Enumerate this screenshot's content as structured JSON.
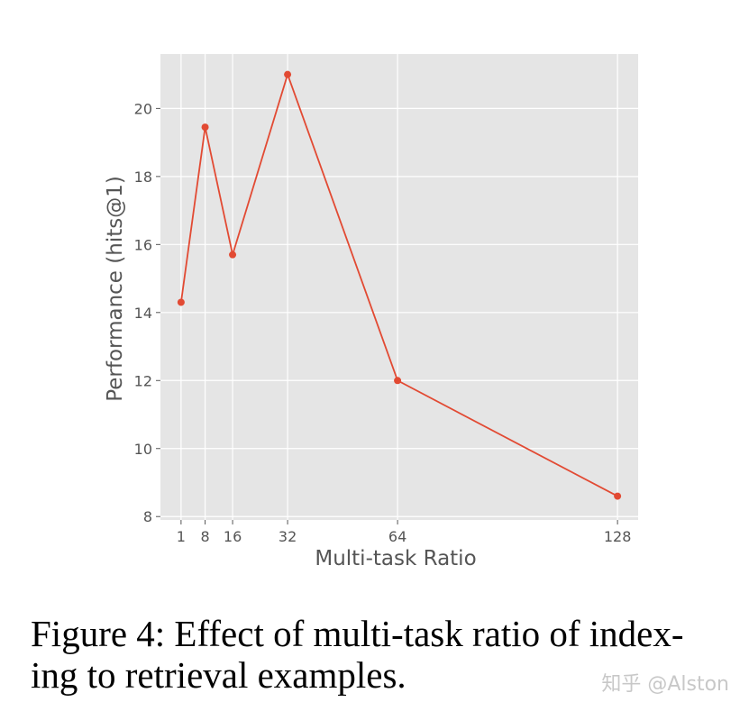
{
  "chart_data": {
    "type": "line",
    "title": "",
    "xlabel": "Multi-task Ratio",
    "ylabel": "Performance (hits@1)",
    "x": [
      1,
      8,
      16,
      32,
      64,
      128
    ],
    "xticks": [
      1,
      8,
      16,
      32,
      64,
      128
    ],
    "xlim": [
      -5,
      134
    ],
    "yticks": [
      8,
      10,
      12,
      14,
      16,
      18,
      20
    ],
    "ylim": [
      7.9,
      21.6
    ],
    "grid": true,
    "series": [
      {
        "values": [
          14.3,
          19.45,
          15.7,
          21.0,
          12.0,
          8.6
        ],
        "color": "#e24a33"
      }
    ],
    "background_color": "#e5e5e5",
    "grid_color": "#ffffff"
  },
  "caption": {
    "line1": "Figure 4: Effect of multi-task ratio of index-",
    "line2": "ing to retrieval examples."
  },
  "watermark": "知乎 @Alston"
}
